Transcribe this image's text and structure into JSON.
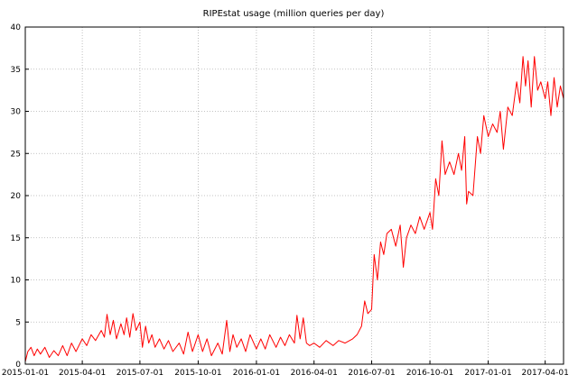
{
  "chart_data": {
    "type": "line",
    "title": "RIPEstat usage (million queries per day)",
    "xlabel": "",
    "ylabel": "",
    "xlim": [
      "2015-01-01",
      "2017-04-30"
    ],
    "ylim": [
      0,
      40
    ],
    "grid": true,
    "x_ticks": [
      "2015-01-01",
      "2015-04-01",
      "2015-07-01",
      "2015-10-01",
      "2016-01-01",
      "2016-04-01",
      "2016-07-01",
      "2016-10-01",
      "2017-01-01",
      "2017-04-01"
    ],
    "y_ticks": [
      0,
      5,
      10,
      15,
      20,
      25,
      30,
      35,
      40
    ],
    "series": [
      {
        "color": "#ff0000",
        "points": [
          [
            "2015-01-01",
            0.3
          ],
          [
            "2015-01-05",
            1.5
          ],
          [
            "2015-01-10",
            2.0
          ],
          [
            "2015-01-15",
            1.0
          ],
          [
            "2015-01-20",
            1.8
          ],
          [
            "2015-01-25",
            1.2
          ],
          [
            "2015-02-01",
            2.0
          ],
          [
            "2015-02-08",
            0.8
          ],
          [
            "2015-02-15",
            1.6
          ],
          [
            "2015-02-22",
            1.0
          ],
          [
            "2015-03-01",
            2.2
          ],
          [
            "2015-03-08",
            1.0
          ],
          [
            "2015-03-15",
            2.5
          ],
          [
            "2015-03-22",
            1.5
          ],
          [
            "2015-04-01",
            3.0
          ],
          [
            "2015-04-08",
            2.2
          ],
          [
            "2015-04-15",
            3.5
          ],
          [
            "2015-04-22",
            2.8
          ],
          [
            "2015-05-01",
            4.0
          ],
          [
            "2015-05-06",
            3.2
          ],
          [
            "2015-05-10",
            5.9
          ],
          [
            "2015-05-15",
            3.5
          ],
          [
            "2015-05-20",
            5.2
          ],
          [
            "2015-05-25",
            3.0
          ],
          [
            "2015-06-01",
            4.8
          ],
          [
            "2015-06-06",
            3.5
          ],
          [
            "2015-06-10",
            5.5
          ],
          [
            "2015-06-15",
            3.2
          ],
          [
            "2015-06-20",
            6.0
          ],
          [
            "2015-06-25",
            4.0
          ],
          [
            "2015-07-01",
            5.0
          ],
          [
            "2015-07-05",
            2.0
          ],
          [
            "2015-07-10",
            4.5
          ],
          [
            "2015-07-15",
            2.5
          ],
          [
            "2015-07-20",
            3.5
          ],
          [
            "2015-07-25",
            2.0
          ],
          [
            "2015-08-01",
            3.0
          ],
          [
            "2015-08-08",
            1.8
          ],
          [
            "2015-08-15",
            2.8
          ],
          [
            "2015-08-22",
            1.5
          ],
          [
            "2015-09-01",
            2.5
          ],
          [
            "2015-09-08",
            1.2
          ],
          [
            "2015-09-15",
            3.8
          ],
          [
            "2015-09-22",
            1.5
          ],
          [
            "2015-10-01",
            3.5
          ],
          [
            "2015-10-08",
            1.5
          ],
          [
            "2015-10-15",
            3.0
          ],
          [
            "2015-10-22",
            1.0
          ],
          [
            "2015-11-01",
            2.5
          ],
          [
            "2015-11-08",
            1.2
          ],
          [
            "2015-11-15",
            5.2
          ],
          [
            "2015-11-20",
            1.5
          ],
          [
            "2015-11-25",
            3.5
          ],
          [
            "2015-12-01",
            2.0
          ],
          [
            "2015-12-08",
            3.0
          ],
          [
            "2015-12-15",
            1.5
          ],
          [
            "2015-12-22",
            3.5
          ],
          [
            "2016-01-01",
            1.8
          ],
          [
            "2016-01-08",
            3.0
          ],
          [
            "2016-01-15",
            1.8
          ],
          [
            "2016-01-22",
            3.5
          ],
          [
            "2016-02-01",
            2.0
          ],
          [
            "2016-02-08",
            3.2
          ],
          [
            "2016-02-15",
            2.2
          ],
          [
            "2016-02-22",
            3.5
          ],
          [
            "2016-03-01",
            2.5
          ],
          [
            "2016-03-05",
            5.8
          ],
          [
            "2016-03-10",
            3.0
          ],
          [
            "2016-03-15",
            5.5
          ],
          [
            "2016-03-20",
            2.5
          ],
          [
            "2016-03-25",
            2.2
          ],
          [
            "2016-04-01",
            2.5
          ],
          [
            "2016-04-10",
            2.0
          ],
          [
            "2016-04-20",
            2.8
          ],
          [
            "2016-05-01",
            2.2
          ],
          [
            "2016-05-10",
            2.8
          ],
          [
            "2016-05-20",
            2.5
          ],
          [
            "2016-06-01",
            3.0
          ],
          [
            "2016-06-08",
            3.5
          ],
          [
            "2016-06-15",
            4.5
          ],
          [
            "2016-06-20",
            7.5
          ],
          [
            "2016-06-25",
            6.0
          ],
          [
            "2016-07-01",
            6.5
          ],
          [
            "2016-07-05",
            13.0
          ],
          [
            "2016-07-10",
            10.0
          ],
          [
            "2016-07-15",
            14.5
          ],
          [
            "2016-07-20",
            13.0
          ],
          [
            "2016-07-25",
            15.5
          ],
          [
            "2016-08-01",
            16.0
          ],
          [
            "2016-08-08",
            14.0
          ],
          [
            "2016-08-15",
            16.5
          ],
          [
            "2016-08-20",
            11.5
          ],
          [
            "2016-08-25",
            15.0
          ],
          [
            "2016-09-01",
            16.5
          ],
          [
            "2016-09-08",
            15.5
          ],
          [
            "2016-09-15",
            17.5
          ],
          [
            "2016-09-22",
            16.0
          ],
          [
            "2016-10-01",
            18.0
          ],
          [
            "2016-10-05",
            16.0
          ],
          [
            "2016-10-10",
            22.0
          ],
          [
            "2016-10-15",
            20.0
          ],
          [
            "2016-10-20",
            26.5
          ],
          [
            "2016-10-25",
            22.5
          ],
          [
            "2016-11-01",
            24.0
          ],
          [
            "2016-11-08",
            22.5
          ],
          [
            "2016-11-15",
            25.0
          ],
          [
            "2016-11-20",
            23.0
          ],
          [
            "2016-11-25",
            27.0
          ],
          [
            "2016-11-28",
            19.0
          ],
          [
            "2016-12-01",
            20.5
          ],
          [
            "2016-12-08",
            20.0
          ],
          [
            "2016-12-15",
            27.0
          ],
          [
            "2016-12-20",
            25.0
          ],
          [
            "2016-12-25",
            29.5
          ],
          [
            "2017-01-01",
            27.0
          ],
          [
            "2017-01-08",
            28.5
          ],
          [
            "2017-01-15",
            27.5
          ],
          [
            "2017-01-20",
            30.0
          ],
          [
            "2017-01-25",
            25.5
          ],
          [
            "2017-02-01",
            30.5
          ],
          [
            "2017-02-08",
            29.5
          ],
          [
            "2017-02-15",
            33.5
          ],
          [
            "2017-02-20",
            31.0
          ],
          [
            "2017-02-25",
            36.5
          ],
          [
            "2017-03-01",
            33.0
          ],
          [
            "2017-03-05",
            36.0
          ],
          [
            "2017-03-10",
            30.5
          ],
          [
            "2017-03-15",
            36.5
          ],
          [
            "2017-03-20",
            32.5
          ],
          [
            "2017-03-25",
            33.5
          ],
          [
            "2017-04-01",
            31.5
          ],
          [
            "2017-04-05",
            33.5
          ],
          [
            "2017-04-10",
            29.5
          ],
          [
            "2017-04-15",
            34.0
          ],
          [
            "2017-04-20",
            30.5
          ],
          [
            "2017-04-25",
            33.0
          ],
          [
            "2017-04-30",
            31.5
          ]
        ]
      }
    ]
  }
}
